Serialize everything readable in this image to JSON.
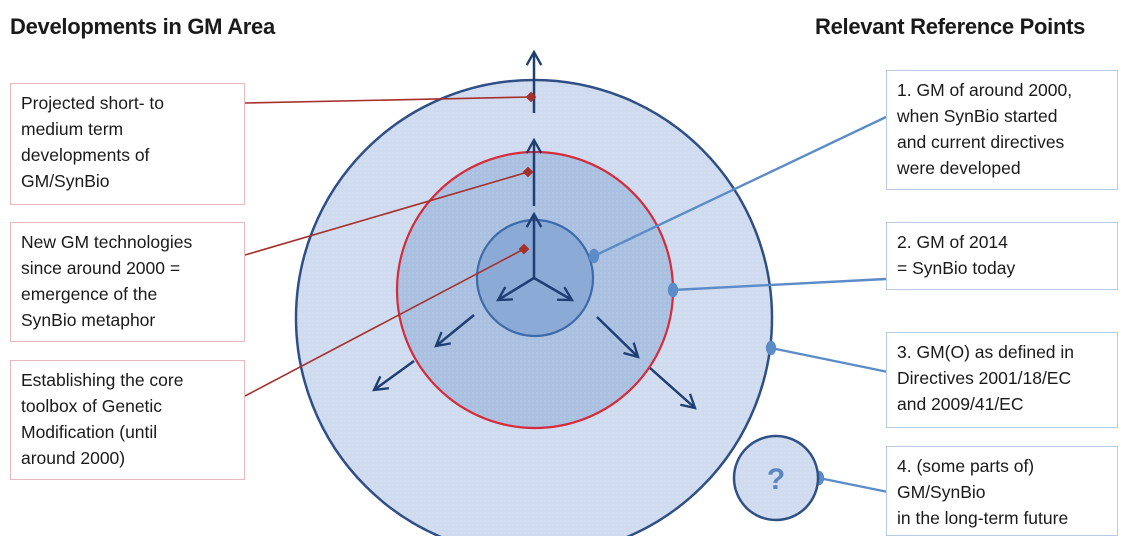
{
  "headings": {
    "left": "Developments in GM Area",
    "right": "Relevant Reference Points"
  },
  "left_boxes": [
    {
      "lines": [
        "Projected short- to",
        "medium term",
        "developments of",
        "GM/SynBio"
      ]
    },
    {
      "lines": [
        "New GM technologies",
        "since around 2000 =",
        "emergence of the",
        "SynBio metaphor"
      ]
    },
    {
      "lines": [
        "Establishing the core",
        "toolbox of Genetic",
        "Modification (until",
        "around 2000)"
      ]
    }
  ],
  "right_boxes": [
    {
      "lines": [
        "1. GM of around 2000,",
        "when SynBio started",
        "and current directives",
        "were developed"
      ]
    },
    {
      "lines": [
        "2. GM of 2014",
        "= SynBio today"
      ]
    },
    {
      "lines": [
        "3. GM(O) as defined in",
        "Directives 2001/18/EC",
        "and 2009/41/EC"
      ]
    },
    {
      "lines": [
        "4. (some parts of)",
        "GM/SynBio",
        "in the long-term future"
      ]
    }
  ],
  "future_symbol": "?",
  "colors": {
    "outer_fill": "#cfdbee",
    "middle_fill": "#a9c0e1",
    "inner_fill": "#8caad6",
    "outer_stroke": "#2f4f86",
    "red_ring": "#d42c3c",
    "arrow": "#1f3f73",
    "left_connector": "#a5302c",
    "right_connector": "#5b8cc7"
  }
}
